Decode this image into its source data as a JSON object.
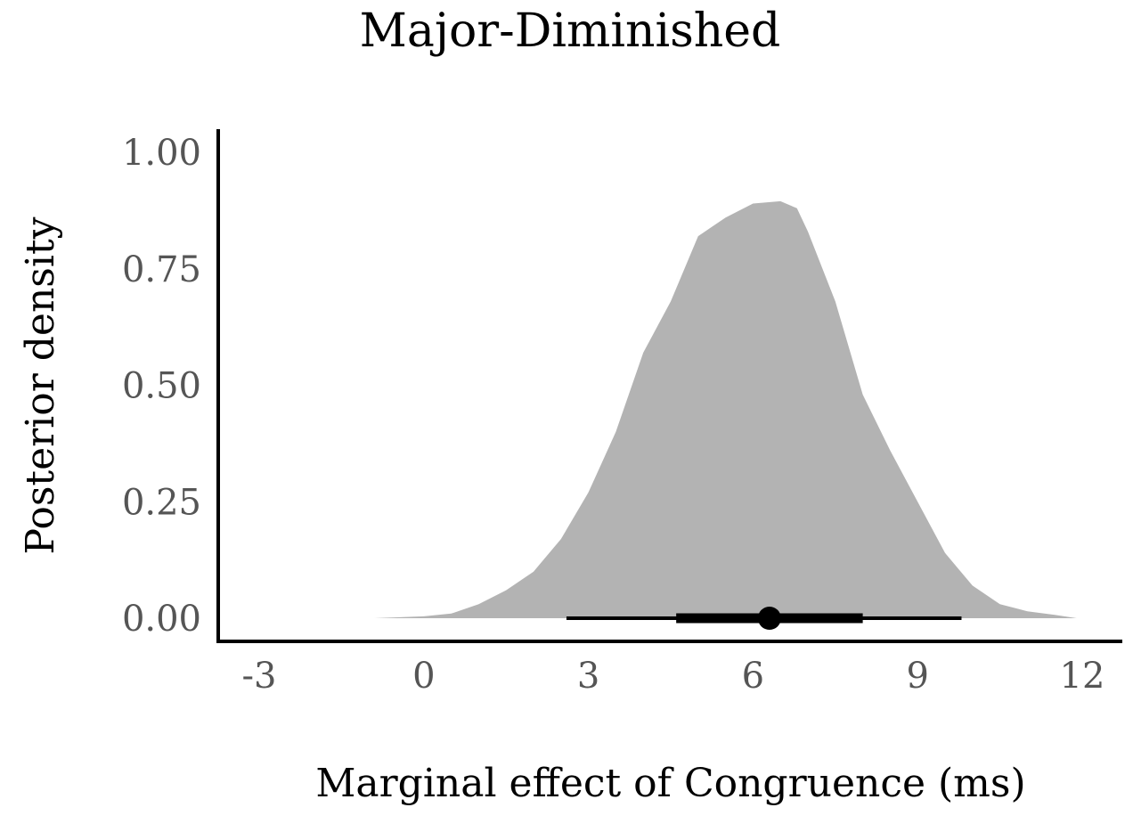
{
  "chart_data": {
    "type": "area",
    "title": "Major-Diminished",
    "xlabel": "Marginal effect of Congruence (ms)",
    "ylabel": "Posterior density",
    "xlim": [
      -3,
      12.7
    ],
    "ylim": [
      0,
      1.05
    ],
    "x_ticks": [
      "-3",
      "0",
      "3",
      "6",
      "9",
      "12"
    ],
    "y_ticks": [
      "0.00",
      "0.25",
      "0.50",
      "0.75",
      "1.00"
    ],
    "grid": false,
    "legend": "none",
    "fill_color": "#b3b3b3",
    "interval_color": "#000000",
    "density": {
      "x": [
        -0.9,
        0.0,
        0.5,
        1.0,
        1.5,
        2.0,
        2.5,
        3.0,
        3.5,
        4.0,
        4.5,
        5.0,
        5.5,
        6.0,
        6.5,
        6.8,
        7.0,
        7.5,
        8.0,
        8.5,
        9.0,
        9.5,
        10.0,
        10.5,
        11.0,
        11.5,
        11.9
      ],
      "y": [
        0.0,
        0.004,
        0.01,
        0.03,
        0.06,
        0.1,
        0.17,
        0.27,
        0.4,
        0.57,
        0.68,
        0.82,
        0.86,
        0.89,
        0.895,
        0.88,
        0.83,
        0.68,
        0.48,
        0.36,
        0.25,
        0.14,
        0.07,
        0.03,
        0.015,
        0.007,
        0.0
      ]
    },
    "point_estimate": 6.3,
    "interval_66": [
      4.6,
      8.0
    ],
    "interval_95": [
      2.6,
      9.8
    ]
  }
}
